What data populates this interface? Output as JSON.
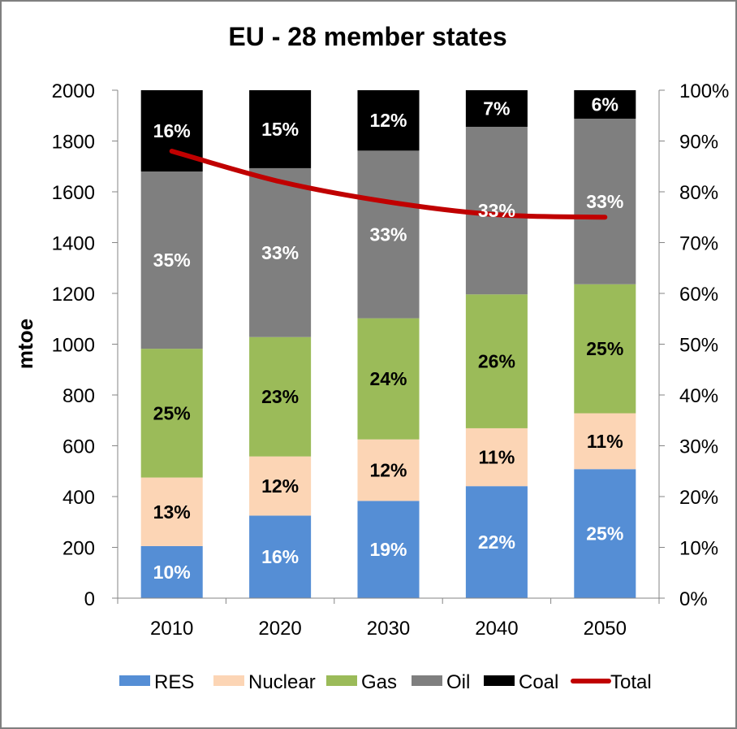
{
  "chart_data": {
    "type": "bar",
    "stacked": true,
    "title": "EU - 28 member states",
    "ylabel": "mtoe",
    "ylim": [
      0,
      2000
    ],
    "y_ticks": [
      "0",
      "200",
      "400",
      "600",
      "800",
      "1000",
      "1200",
      "1400",
      "1600",
      "1800",
      "2000"
    ],
    "y2lim": [
      0,
      100
    ],
    "y2_ticks": [
      "0%",
      "10%",
      "20%",
      "30%",
      "40%",
      "50%",
      "60%",
      "70%",
      "80%",
      "90%",
      "100%"
    ],
    "categories": [
      "2010",
      "2020",
      "2030",
      "2040",
      "2050"
    ],
    "series": [
      {
        "name": "RES",
        "color": "#558ed5",
        "label_color": "#ffffff",
        "values": [
          205,
          325,
          383,
          441,
          508
        ],
        "labels": [
          "10%",
          "16%",
          "19%",
          "22%",
          "25%"
        ]
      },
      {
        "name": "Nuclear",
        "color": "#fcd5b5",
        "label_color": "#000000",
        "values": [
          270,
          233,
          242,
          228,
          220
        ],
        "labels": [
          "13%",
          "12%",
          "12%",
          "11%",
          "11%"
        ]
      },
      {
        "name": "Gas",
        "color": "#9bbb59",
        "label_color": "#000000",
        "values": [
          507,
          470,
          477,
          527,
          508
        ],
        "labels": [
          "25%",
          "23%",
          "24%",
          "26%",
          "25%"
        ]
      },
      {
        "name": "Oil",
        "color": "#7f7f7f",
        "label_color": "#ffffff",
        "values": [
          698,
          665,
          660,
          660,
          652
        ],
        "labels": [
          "35%",
          "33%",
          "33%",
          "33%",
          "33%"
        ]
      },
      {
        "name": "Coal",
        "color": "#000000",
        "label_color": "#ffffff",
        "values": [
          320,
          307,
          238,
          144,
          112
        ],
        "labels": [
          "16%",
          "15%",
          "12%",
          "7%",
          "6%"
        ]
      }
    ],
    "line_series": {
      "name": "Total",
      "color": "#c00000",
      "axis": "secondary",
      "values": [
        88,
        82,
        78,
        75.5,
        75
      ]
    },
    "grid": false,
    "legend": "bottom"
  }
}
